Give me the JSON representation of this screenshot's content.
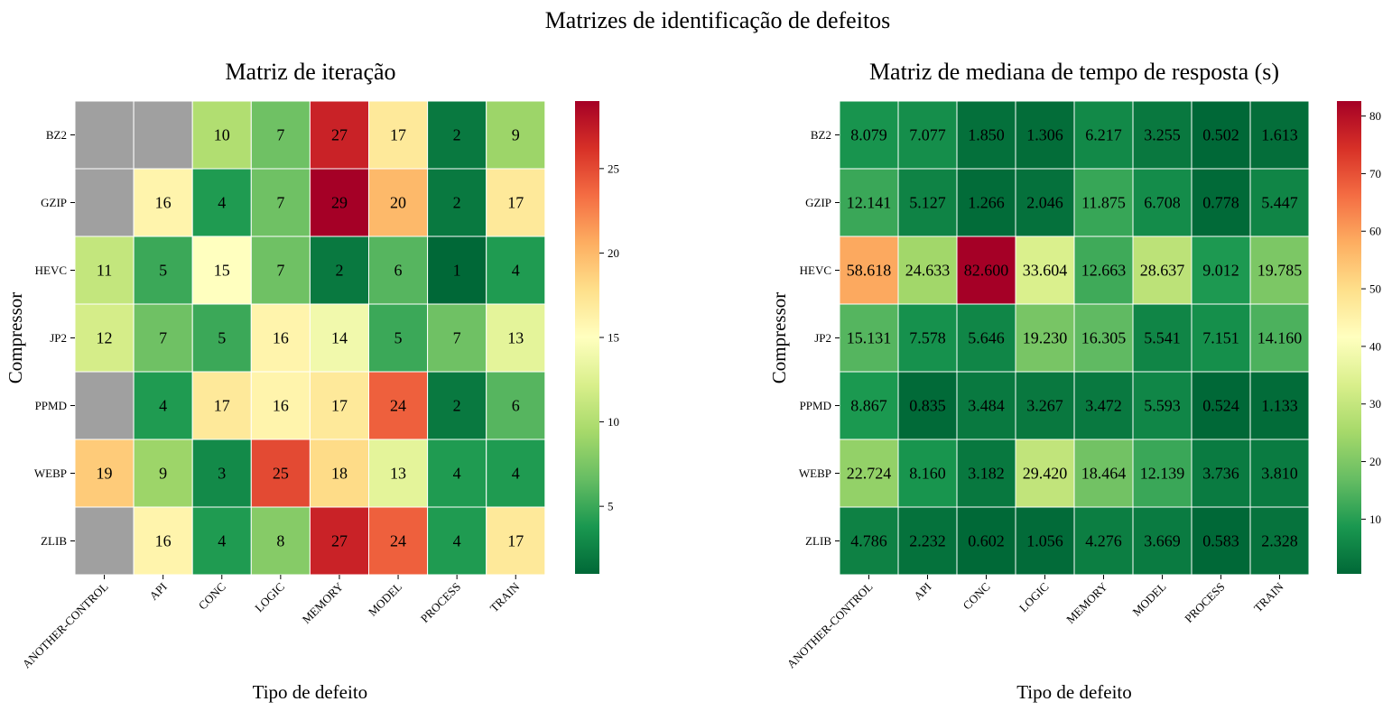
{
  "figure": {
    "suptitle": "Matrizes de identificação de defeitos"
  },
  "chart_data": [
    {
      "type": "heatmap",
      "title": "Matriz de iteração",
      "xlabel": "Tipo de defeito",
      "ylabel": "Compressor",
      "x_categories": [
        "ANOTHER-CONTROL",
        "API",
        "CONC",
        "LOGIC",
        "MEMORY",
        "MODEL",
        "PROCESS",
        "TRAIN"
      ],
      "y_categories": [
        "BZ2",
        "GZIP",
        "HEVC",
        "JP2",
        "PPMD",
        "WEBP",
        "ZLIB"
      ],
      "values": [
        [
          null,
          null,
          10,
          7,
          27,
          17,
          2,
          9
        ],
        [
          null,
          16,
          4,
          7,
          29,
          20,
          2,
          17
        ],
        [
          11,
          5,
          15,
          7,
          2,
          6,
          1,
          4
        ],
        [
          12,
          7,
          5,
          16,
          14,
          5,
          7,
          13
        ],
        [
          null,
          4,
          17,
          16,
          17,
          24,
          2,
          6
        ],
        [
          19,
          9,
          3,
          25,
          18,
          13,
          4,
          4
        ],
        [
          null,
          16,
          4,
          8,
          27,
          24,
          4,
          17
        ]
      ],
      "value_format": "int",
      "missing_color": "#a0a0a0",
      "colormap": "RdYlGn_r",
      "vmin": 1,
      "vmax": 29,
      "colorbar_ticks": [
        5,
        10,
        15,
        20,
        25
      ]
    },
    {
      "type": "heatmap",
      "title": "Matriz de mediana de tempo de resposta (s)",
      "xlabel": "Tipo de defeito",
      "ylabel": "Compressor",
      "x_categories": [
        "ANOTHER-CONTROL",
        "API",
        "CONC",
        "LOGIC",
        "MEMORY",
        "MODEL",
        "PROCESS",
        "TRAIN"
      ],
      "y_categories": [
        "BZ2",
        "GZIP",
        "HEVC",
        "JP2",
        "PPMD",
        "WEBP",
        "ZLIB"
      ],
      "values": [
        [
          8.079,
          7.077,
          1.85,
          1.306,
          6.217,
          3.255,
          0.502,
          1.613
        ],
        [
          12.141,
          5.127,
          1.266,
          2.046,
          11.875,
          6.708,
          0.778,
          5.447
        ],
        [
          58.618,
          24.633,
          82.6,
          33.604,
          12.663,
          28.637,
          9.012,
          19.785
        ],
        [
          15.131,
          7.578,
          5.646,
          19.23,
          16.305,
          5.541,
          7.151,
          14.16
        ],
        [
          8.867,
          0.835,
          3.484,
          3.267,
          3.472,
          5.593,
          0.524,
          1.133
        ],
        [
          22.724,
          8.16,
          3.182,
          29.42,
          18.464,
          12.139,
          3.736,
          3.81
        ],
        [
          4.786,
          2.232,
          0.602,
          1.056,
          4.276,
          3.669,
          0.583,
          2.328
        ]
      ],
      "value_format": "fixed3",
      "missing_color": "#a0a0a0",
      "colormap": "RdYlGn_r",
      "vmin": 0.502,
      "vmax": 82.6,
      "colorbar_ticks": [
        10,
        20,
        30,
        40,
        50,
        60,
        70,
        80
      ]
    }
  ]
}
